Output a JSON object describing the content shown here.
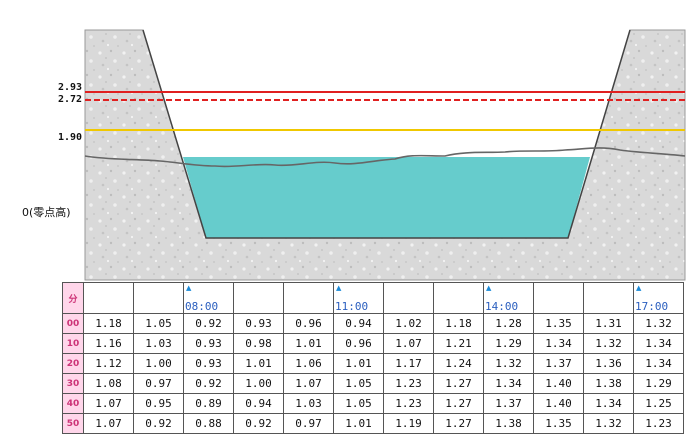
{
  "levels": {
    "danger": {
      "value": 2.93,
      "label": "2.93",
      "color": "#e02020"
    },
    "warning": {
      "value": 2.72,
      "label": "2.72",
      "color": "#e02020"
    },
    "caution": {
      "value": 1.9,
      "label": "1.90",
      "color": "#f0c800"
    },
    "zero_label": "0(零点高)"
  },
  "colors": {
    "water": "#66cccc",
    "ground": "#d9d9d9",
    "header_bg": "#ffd6ea"
  },
  "table": {
    "minute_header": "分",
    "time_labels": [
      "",
      "",
      "08:00",
      "",
      "",
      "11:00",
      "",
      "",
      "14:00",
      "",
      "",
      "17:00"
    ],
    "arrows": [
      false,
      false,
      true,
      false,
      false,
      true,
      false,
      false,
      true,
      false,
      false,
      true
    ],
    "rows": [
      {
        "minute": "00",
        "values": [
          "1.18",
          "1.05",
          "0.92",
          "0.93",
          "0.96",
          "0.94",
          "1.02",
          "1.18",
          "1.28",
          "1.35",
          "1.31",
          "1.32"
        ]
      },
      {
        "minute": "10",
        "values": [
          "1.16",
          "1.03",
          "0.93",
          "0.98",
          "1.01",
          "0.96",
          "1.07",
          "1.21",
          "1.29",
          "1.34",
          "1.32",
          "1.34"
        ]
      },
      {
        "minute": "20",
        "values": [
          "1.12",
          "1.00",
          "0.93",
          "1.01",
          "1.06",
          "1.01",
          "1.17",
          "1.24",
          "1.32",
          "1.37",
          "1.36",
          "1.34"
        ]
      },
      {
        "minute": "30",
        "values": [
          "1.08",
          "0.97",
          "0.92",
          "1.00",
          "1.07",
          "1.05",
          "1.23",
          "1.27",
          "1.34",
          "1.40",
          "1.38",
          "1.29"
        ]
      },
      {
        "minute": "40",
        "values": [
          "1.07",
          "0.95",
          "0.89",
          "0.94",
          "1.03",
          "1.05",
          "1.23",
          "1.27",
          "1.37",
          "1.40",
          "1.34",
          "1.25"
        ]
      },
      {
        "minute": "50",
        "values": [
          "1.07",
          "0.92",
          "0.88",
          "0.92",
          "0.97",
          "1.01",
          "1.19",
          "1.27",
          "1.38",
          "1.35",
          "1.32",
          "1.23"
        ]
      }
    ]
  }
}
